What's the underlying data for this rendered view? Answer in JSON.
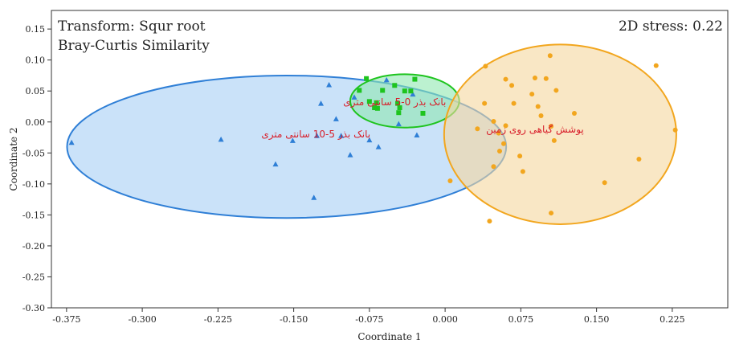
{
  "chart_data": {
    "type": "scatter",
    "annotations": {
      "top_left_line1": "Transform: Squr root",
      "top_left_line2": "Bray-Curtis Similarity",
      "top_right": "2D stress: 0.22"
    },
    "xlabel": "Coordinate 1",
    "ylabel": "Coordinate 2",
    "xlim": [
      -0.39,
      0.28
    ],
    "ylim": [
      -0.3,
      0.18
    ],
    "x_ticks": [
      "-0.375",
      "-0.300",
      "-0.225",
      "-0.150",
      "-0.075",
      "0.000",
      "0.075",
      "0.150",
      "0.225"
    ],
    "y_ticks": [
      "0.15",
      "0.10",
      "0.05",
      "0.00",
      "-0.05",
      "-0.10",
      "-0.15",
      "-0.20",
      "-0.25",
      "-0.30"
    ],
    "series": [
      {
        "name": "بانک بذر 5-10 سانتی متری",
        "marker": "triangle",
        "color": "#2f7fd6",
        "fill": "#a6cef5",
        "ellipse": {
          "cx": -0.157,
          "cy": -0.04,
          "rx": 0.2175,
          "ry": 0.115
        },
        "label_pos": [
          -0.128,
          -0.02
        ],
        "points": [
          [
            -0.37,
            -0.033
          ],
          [
            -0.222,
            -0.028
          ],
          [
            -0.168,
            -0.068
          ],
          [
            -0.151,
            -0.03
          ],
          [
            -0.13,
            -0.122
          ],
          [
            -0.127,
            -0.022
          ],
          [
            -0.123,
            0.03
          ],
          [
            -0.115,
            0.06
          ],
          [
            -0.108,
            0.005
          ],
          [
            -0.103,
            -0.022
          ],
          [
            -0.094,
            -0.053
          ],
          [
            -0.09,
            0.04
          ],
          [
            -0.075,
            -0.029
          ],
          [
            -0.066,
            -0.04
          ],
          [
            -0.058,
            0.068
          ],
          [
            -0.046,
            -0.003
          ],
          [
            -0.032,
            0.045
          ],
          [
            -0.028,
            -0.021
          ]
        ]
      },
      {
        "name": "بانک بذر 0-5 سانتی متری",
        "marker": "square",
        "color": "#1ec41e",
        "fill": "#8fe8b0",
        "ellipse": {
          "cx": -0.04,
          "cy": 0.034,
          "rx": 0.054,
          "ry": 0.043
        },
        "label_pos": [
          -0.05,
          0.032
        ],
        "points": [
          [
            -0.078,
            0.07
          ],
          [
            -0.085,
            0.051
          ],
          [
            -0.075,
            0.033
          ],
          [
            -0.07,
            0.023
          ],
          [
            -0.068,
            0.031
          ],
          [
            -0.067,
            0.022
          ],
          [
            -0.062,
            0.051
          ],
          [
            -0.05,
            0.059
          ],
          [
            -0.047,
            0.03
          ],
          [
            -0.046,
            0.015
          ],
          [
            -0.045,
            0.023
          ],
          [
            -0.04,
            0.05
          ],
          [
            -0.034,
            0.05
          ],
          [
            -0.03,
            0.069
          ],
          [
            -0.022,
            0.014
          ]
        ]
      },
      {
        "name": "پوشش گیاهی روی زمین",
        "marker": "circle",
        "color": "#f2a61e",
        "fill": "#f5d79e",
        "ellipse": {
          "cx": 0.114,
          "cy": -0.02,
          "rx": 0.115,
          "ry": 0.145
        },
        "label_pos": [
          0.089,
          -0.012
        ],
        "points": [
          [
            0.005,
            -0.095
          ],
          [
            0.032,
            -0.011
          ],
          [
            0.04,
            0.09
          ],
          [
            0.039,
            0.03
          ],
          [
            0.044,
            -0.16
          ],
          [
            0.048,
            -0.072
          ],
          [
            0.048,
            0.001
          ],
          [
            0.053,
            -0.018
          ],
          [
            0.054,
            -0.047
          ],
          [
            0.058,
            -0.035
          ],
          [
            0.06,
            -0.006
          ],
          [
            0.06,
            0.069
          ],
          [
            0.066,
            0.059
          ],
          [
            0.068,
            0.03
          ],
          [
            0.074,
            -0.055
          ],
          [
            0.077,
            -0.08
          ],
          [
            0.086,
            0.045
          ],
          [
            0.089,
            0.071
          ],
          [
            0.092,
            0.025
          ],
          [
            0.095,
            0.01
          ],
          [
            0.1,
            0.07
          ],
          [
            0.104,
            0.107
          ],
          [
            0.105,
            -0.147
          ],
          [
            0.105,
            -0.007
          ],
          [
            0.108,
            -0.03
          ],
          [
            0.11,
            0.051
          ],
          [
            0.128,
            0.014
          ],
          [
            0.158,
            -0.098
          ],
          [
            0.192,
            -0.06
          ],
          [
            0.209,
            0.091
          ],
          [
            0.228,
            -0.013
          ]
        ]
      }
    ]
  }
}
